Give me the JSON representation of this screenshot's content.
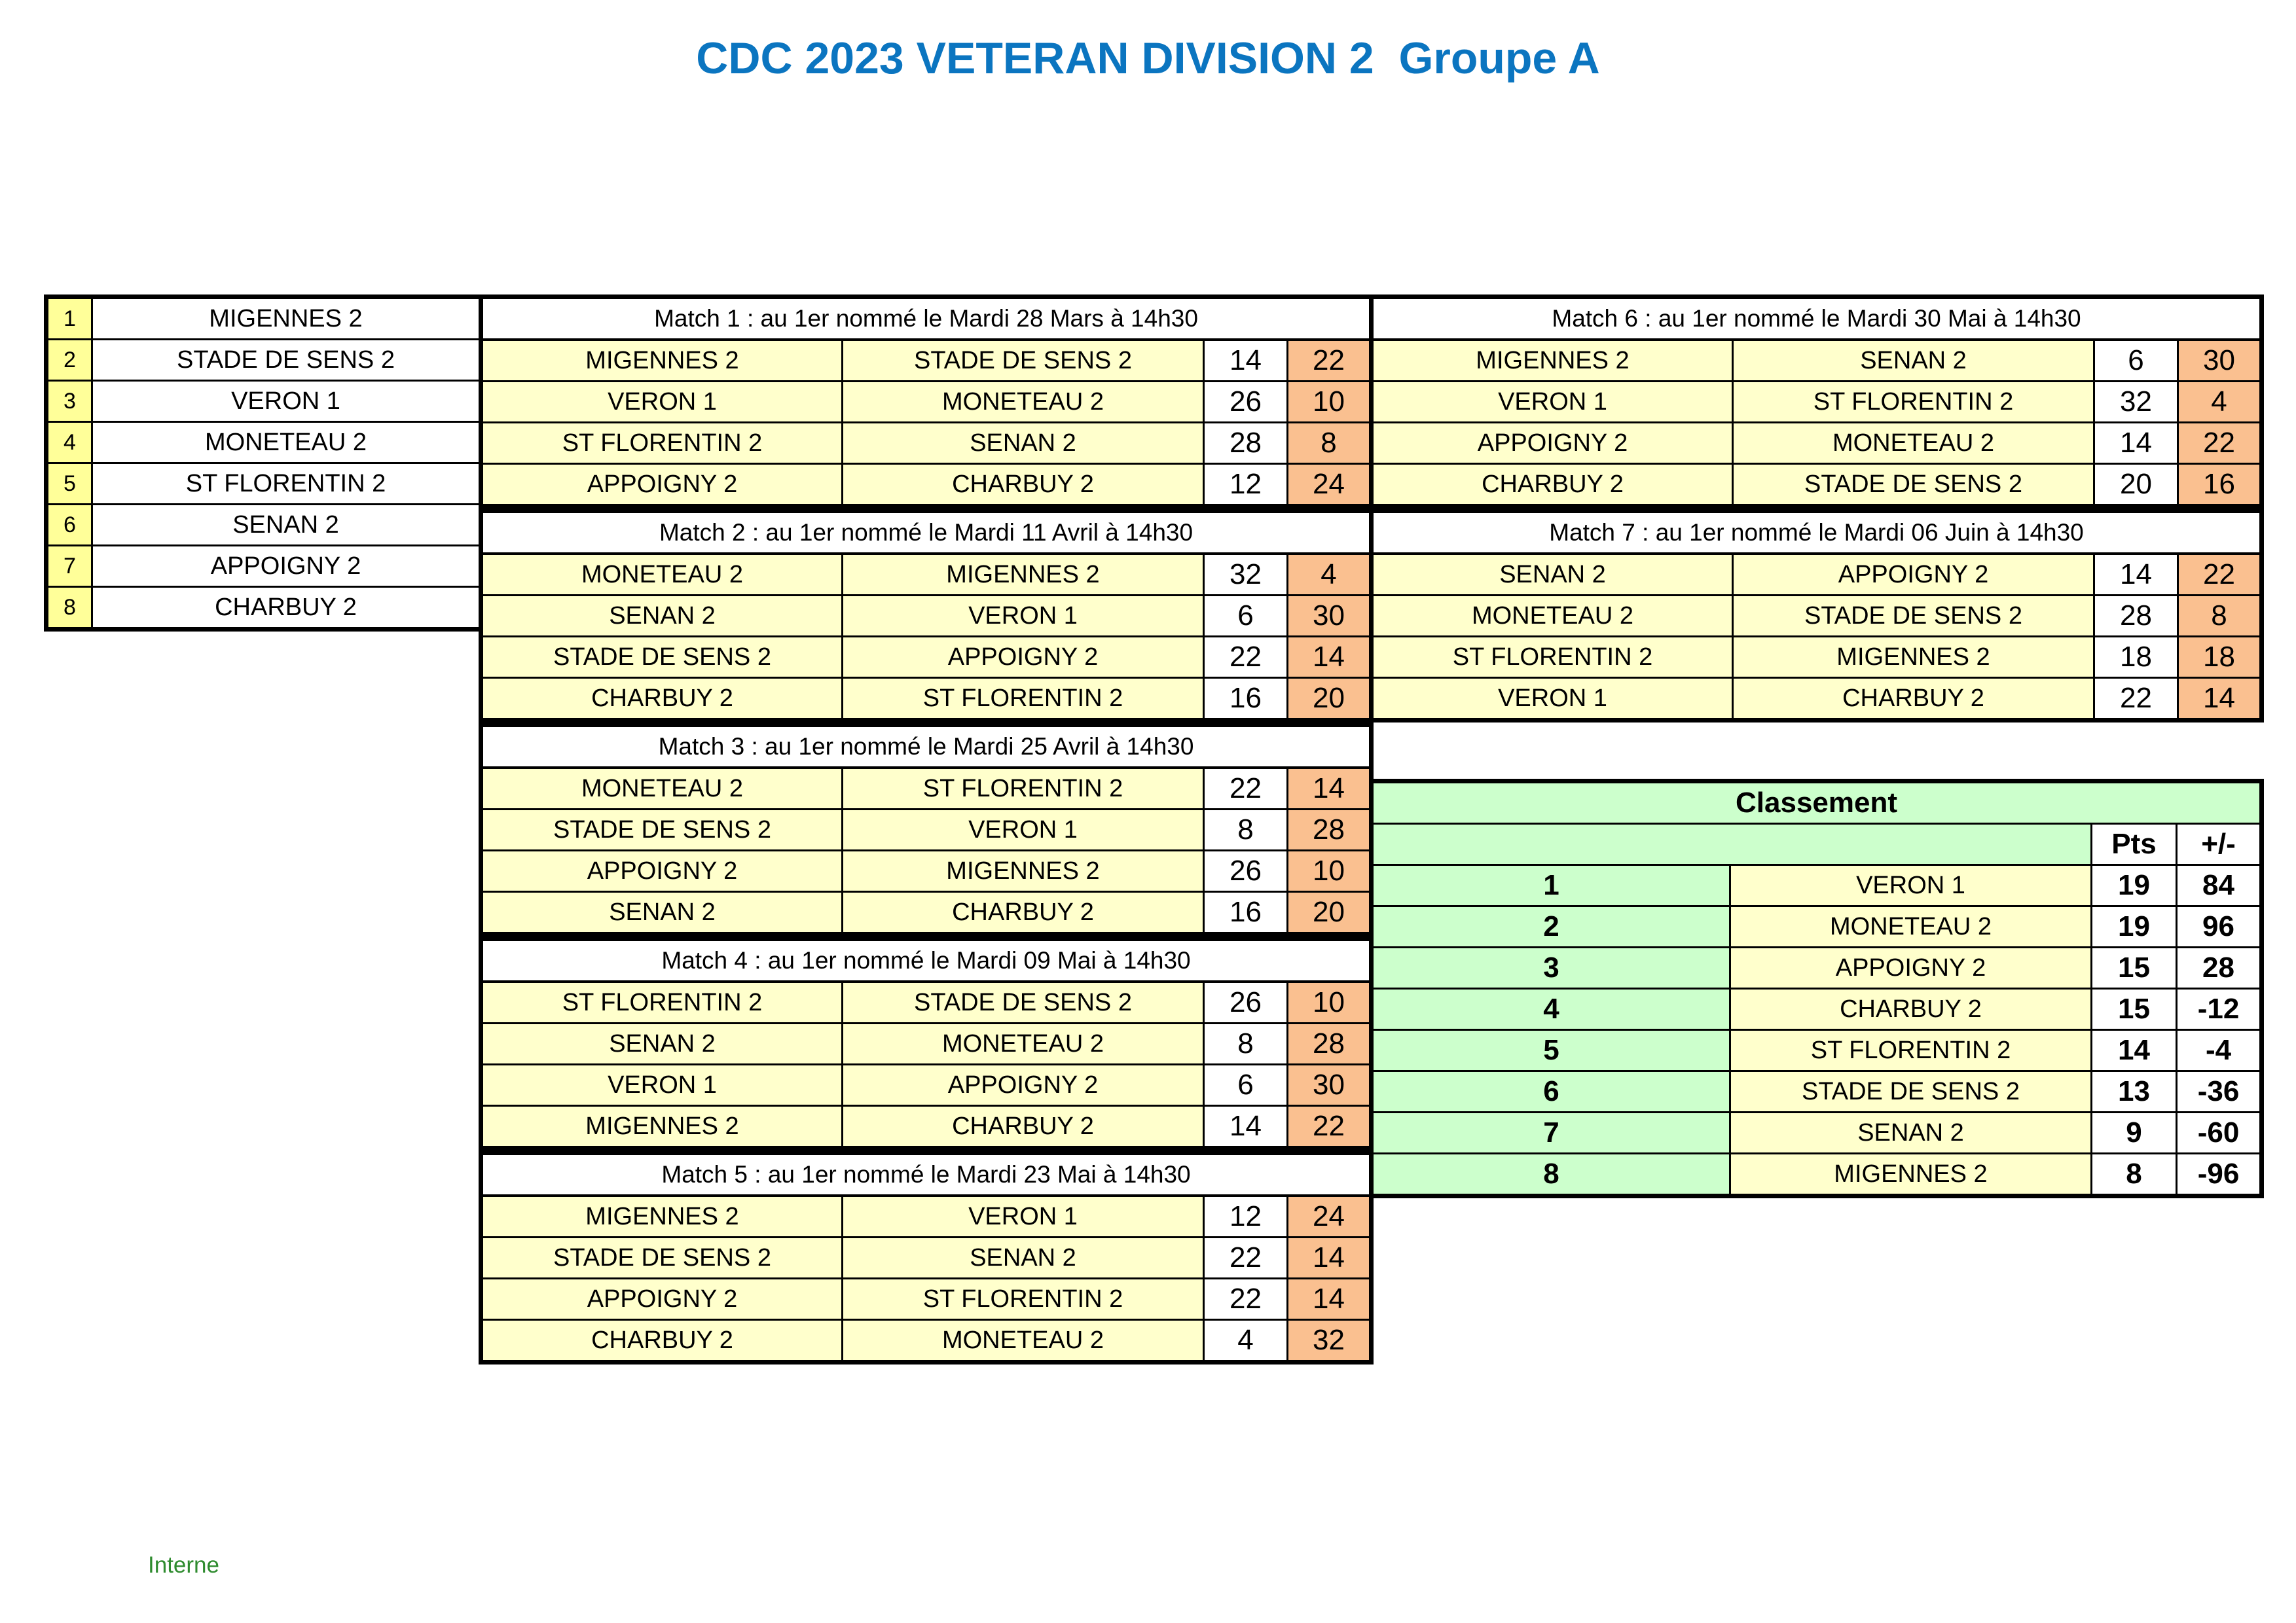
{
  "title": "CDC 2023 VETERAN DIVISION 2  Groupe A",
  "footer": "Interne",
  "teams": [
    {
      "num": "1",
      "name": "MIGENNES 2"
    },
    {
      "num": "2",
      "name": "STADE DE SENS 2"
    },
    {
      "num": "3",
      "name": "VERON 1"
    },
    {
      "num": "4",
      "name": "MONETEAU 2"
    },
    {
      "num": "5",
      "name": "ST FLORENTIN 2"
    },
    {
      "num": "6",
      "name": "SENAN 2"
    },
    {
      "num": "7",
      "name": "APPOIGNY 2"
    },
    {
      "num": "8",
      "name": "CHARBUY 2"
    }
  ],
  "matches": [
    {
      "header": "Match 1 : au 1er nommé le Mardi 28 Mars à 14h30",
      "games": [
        [
          "MIGENNES 2",
          "STADE DE SENS 2",
          "14",
          "22"
        ],
        [
          "VERON 1",
          "MONETEAU 2",
          "26",
          "10"
        ],
        [
          "ST FLORENTIN 2",
          "SENAN 2",
          "28",
          "8"
        ],
        [
          "APPOIGNY 2",
          "CHARBUY 2",
          "12",
          "24"
        ]
      ]
    },
    {
      "header": "Match 2 : au 1er nommé le Mardi 11 Avril à 14h30",
      "games": [
        [
          "MONETEAU 2",
          "MIGENNES 2",
          "32",
          "4"
        ],
        [
          "SENAN 2",
          "VERON 1",
          "6",
          "30"
        ],
        [
          "STADE DE SENS 2",
          "APPOIGNY 2",
          "22",
          "14"
        ],
        [
          "CHARBUY 2",
          "ST FLORENTIN 2",
          "16",
          "20"
        ]
      ]
    },
    {
      "header": "Match 3 : au 1er nommé le Mardi 25 Avril à 14h30",
      "games": [
        [
          "MONETEAU 2",
          "ST FLORENTIN 2",
          "22",
          "14"
        ],
        [
          "STADE DE SENS 2",
          "VERON 1",
          "8",
          "28"
        ],
        [
          "APPOIGNY 2",
          "MIGENNES 2",
          "26",
          "10"
        ],
        [
          "SENAN 2",
          "CHARBUY 2",
          "16",
          "20"
        ]
      ]
    },
    {
      "header": "Match 4 : au 1er nommé le Mardi 09 Mai à 14h30",
      "games": [
        [
          "ST FLORENTIN 2",
          "STADE DE SENS 2",
          "26",
          "10"
        ],
        [
          "SENAN 2",
          "MONETEAU 2",
          "8",
          "28"
        ],
        [
          "VERON 1",
          "APPOIGNY 2",
          "6",
          "30"
        ],
        [
          "MIGENNES 2",
          "CHARBUY 2",
          "14",
          "22"
        ]
      ]
    },
    {
      "header": "Match 5 : au 1er nommé le Mardi 23 Mai à 14h30",
      "games": [
        [
          "MIGENNES 2",
          "VERON 1",
          "12",
          "24"
        ],
        [
          "STADE DE SENS 2",
          "SENAN 2",
          "22",
          "14"
        ],
        [
          "APPOIGNY 2",
          "ST FLORENTIN 2",
          "22",
          "14"
        ],
        [
          "CHARBUY 2",
          "MONETEAU 2",
          "4",
          "32"
        ]
      ]
    },
    {
      "header": "Match 6 : au 1er nommé le Mardi 30 Mai à 14h30",
      "games": [
        [
          "MIGENNES 2",
          "SENAN 2",
          "6",
          "30"
        ],
        [
          "VERON 1",
          "ST FLORENTIN 2",
          "32",
          "4"
        ],
        [
          "APPOIGNY 2",
          "MONETEAU 2",
          "14",
          "22"
        ],
        [
          "CHARBUY 2",
          "STADE DE SENS 2",
          "20",
          "16"
        ]
      ]
    },
    {
      "header": "Match 7 : au 1er nommé le Mardi 06 Juin à 14h30",
      "games": [
        [
          "SENAN 2",
          "APPOIGNY 2",
          "14",
          "22"
        ],
        [
          "MONETEAU 2",
          "STADE DE SENS 2",
          "28",
          "8"
        ],
        [
          "ST FLORENTIN 2",
          "MIGENNES 2",
          "18",
          "18"
        ],
        [
          "VERON 1",
          "CHARBUY 2",
          "22",
          "14"
        ]
      ]
    }
  ],
  "standings": {
    "title": "Classement",
    "col_pts": "Pts",
    "col_diff": "+/-",
    "rows": [
      [
        "1",
        "VERON 1",
        "19",
        "84"
      ],
      [
        "2",
        "MONETEAU 2",
        "19",
        "96"
      ],
      [
        "3",
        "APPOIGNY 2",
        "15",
        "28"
      ],
      [
        "4",
        "CHARBUY 2",
        "15",
        "-12"
      ],
      [
        "5",
        "ST FLORENTIN 2",
        "14",
        "-4"
      ],
      [
        "6",
        "STADE DE SENS 2",
        "13",
        "-36"
      ],
      [
        "7",
        "SENAN 2",
        "9",
        "-60"
      ],
      [
        "8",
        "MIGENNES 2",
        "8",
        "-96"
      ]
    ]
  },
  "colors": {
    "title": "#0b75c0",
    "team_cell": "#ffffcc",
    "number_cell": "#ffff99",
    "away_score": "#fac090",
    "standings": "#ccffcc",
    "footer": "#2e8b2e"
  }
}
